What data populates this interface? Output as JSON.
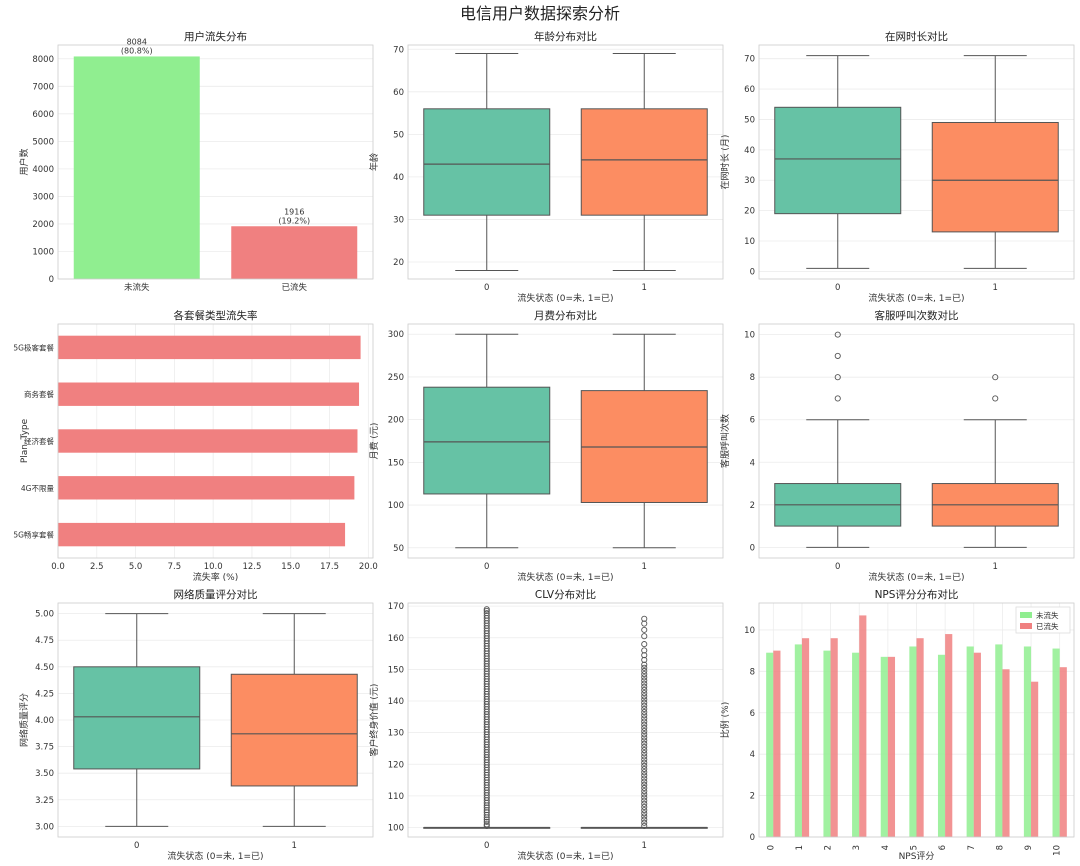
{
  "page_title": "电信用户数据探索分析",
  "colors": {
    "box_retained": "#66c2a5",
    "box_churned": "#fc8d62",
    "bar_green": "#90ee90",
    "bar_red": "#f08080",
    "grid": "#ececec",
    "frame": "#cccccc",
    "median": "#555555"
  },
  "chart_data": [
    {
      "id": "churn_dist",
      "type": "bar",
      "title": "用户流失分布",
      "xlabel": "",
      "ylabel": "用户数",
      "categories": [
        "未流失",
        "已流失"
      ],
      "values": [
        8084,
        1916
      ],
      "data_labels": [
        "8084\n(80.8%)",
        "1916\n(19.2%)"
      ],
      "colors": [
        "#90ee90",
        "#f08080"
      ],
      "ylim": [
        0,
        8500
      ],
      "yticks": [
        0,
        1000,
        2000,
        3000,
        4000,
        5000,
        6000,
        7000,
        8000
      ],
      "ytick_labels": [
        "0",
        "1000",
        "2000",
        "3000",
        "4000",
        "5000",
        "6000",
        "7000",
        "8000"
      ],
      "grid": true
    },
    {
      "id": "age_box",
      "type": "box",
      "title": "年龄分布对比",
      "xlabel": "流失状态 (0=未, 1=已)",
      "ylabel": "年龄",
      "categories": [
        "0",
        "1"
      ],
      "boxes": [
        {
          "whislo": 18,
          "q1": 31,
          "med": 43,
          "q3": 56,
          "whishi": 69,
          "fliers": []
        },
        {
          "whislo": 18,
          "q1": 31,
          "med": 44,
          "q3": 56,
          "whishi": 69,
          "fliers": []
        }
      ],
      "ylim": [
        16,
        71
      ],
      "yticks": [
        20,
        30,
        40,
        50,
        60,
        70
      ],
      "ytick_labels": [
        "20",
        "30",
        "40",
        "50",
        "60",
        "70"
      ],
      "grid": true
    },
    {
      "id": "tenure_box",
      "type": "box",
      "title": "在网时长对比",
      "xlabel": "流失状态 (0=未, 1=已)",
      "ylabel": "在网时长 (月)",
      "categories": [
        "0",
        "1"
      ],
      "boxes": [
        {
          "whislo": 1,
          "q1": 19,
          "med": 37,
          "q3": 54,
          "whishi": 71,
          "fliers": []
        },
        {
          "whislo": 1,
          "q1": 13,
          "med": 30,
          "q3": 49,
          "whishi": 71,
          "fliers": []
        }
      ],
      "ylim": [
        -2.5,
        74.5
      ],
      "yticks": [
        0,
        10,
        20,
        30,
        40,
        50,
        60,
        70
      ],
      "ytick_labels": [
        "0",
        "10",
        "20",
        "30",
        "40",
        "50",
        "60",
        "70"
      ],
      "grid": true
    },
    {
      "id": "plan_churn",
      "type": "hbar",
      "title": "各套餐类型流失率",
      "xlabel": "流失率 (%)",
      "ylabel": "Plan_Type",
      "categories": [
        "5G极客套餐",
        "商务套餐",
        "经济套餐",
        "4G不限量",
        "5G畅享套餐"
      ],
      "values": [
        19.5,
        19.4,
        19.3,
        19.1,
        18.5
      ],
      "color": "#f08080",
      "xlim": [
        0,
        20.3
      ],
      "xticks": [
        0,
        2.5,
        5,
        7.5,
        10,
        12.5,
        15,
        17.5,
        20
      ],
      "xtick_labels": [
        "0.0",
        "2.5",
        "5.0",
        "7.5",
        "10.0",
        "12.5",
        "15.0",
        "17.5",
        "20.0"
      ],
      "grid": true
    },
    {
      "id": "monthly_fee_box",
      "type": "box",
      "title": "月费分布对比",
      "xlabel": "流失状态 (0=未, 1=已)",
      "ylabel": "月费 (元)",
      "categories": [
        "0",
        "1"
      ],
      "boxes": [
        {
          "whislo": 50,
          "q1": 113,
          "med": 174,
          "q3": 238,
          "whishi": 300,
          "fliers": []
        },
        {
          "whislo": 50,
          "q1": 103,
          "med": 168,
          "q3": 234,
          "whishi": 300,
          "fliers": []
        }
      ],
      "ylim": [
        38,
        312
      ],
      "yticks": [
        50,
        100,
        150,
        200,
        250,
        300
      ],
      "ytick_labels": [
        "50",
        "100",
        "150",
        "200",
        "250",
        "300"
      ],
      "grid": true
    },
    {
      "id": "calls_box",
      "type": "box",
      "title": "客服呼叫次数对比",
      "xlabel": "流失状态 (0=未, 1=已)",
      "ylabel": "客服呼叫次数",
      "categories": [
        "0",
        "1"
      ],
      "boxes": [
        {
          "whislo": 0,
          "q1": 1,
          "med": 2,
          "q3": 3,
          "whishi": 6,
          "fliers": [
            7,
            8,
            9,
            10
          ]
        },
        {
          "whislo": 0,
          "q1": 1,
          "med": 2,
          "q3": 3,
          "whishi": 6,
          "fliers": [
            7,
            8
          ]
        }
      ],
      "ylim": [
        -0.5,
        10.5
      ],
      "yticks": [
        0,
        2,
        4,
        6,
        8,
        10
      ],
      "ytick_labels": [
        "0",
        "2",
        "4",
        "6",
        "8",
        "10"
      ],
      "grid": true
    },
    {
      "id": "network_box",
      "type": "box",
      "title": "网络质量评分对比",
      "xlabel": "流失状态 (0=未, 1=已)",
      "ylabel": "网络质量评分",
      "categories": [
        "0",
        "1"
      ],
      "boxes": [
        {
          "whislo": 3.0,
          "q1": 3.54,
          "med": 4.03,
          "q3": 4.5,
          "whishi": 5.0,
          "fliers": []
        },
        {
          "whislo": 3.0,
          "q1": 3.38,
          "med": 3.87,
          "q3": 4.43,
          "whishi": 5.0,
          "fliers": []
        }
      ],
      "ylim": [
        2.9,
        5.1
      ],
      "yticks": [
        3.0,
        3.25,
        3.5,
        3.75,
        4.0,
        4.25,
        4.5,
        4.75,
        5.0
      ],
      "ytick_labels": [
        "3.00",
        "3.25",
        "3.50",
        "3.75",
        "4.00",
        "4.25",
        "4.50",
        "4.75",
        "5.00"
      ],
      "grid": true
    },
    {
      "id": "clv_box",
      "type": "box",
      "title": "CLV分布对比",
      "xlabel": "流失状态 (0=未, 1=已)",
      "ylabel": "客户终身价值 (元)",
      "categories": [
        "0",
        "1"
      ],
      "boxes": [
        {
          "whislo": 100,
          "q1": 100,
          "med": 100,
          "q3": 100,
          "whishi": 100,
          "fliers": [
            100.5,
            101,
            101.8,
            102.5,
            103.2,
            104,
            104.8,
            105.5,
            106.3,
            107,
            107.8,
            108.6,
            109.4,
            110.2,
            111,
            111.8,
            112.6,
            113.4,
            114.2,
            115,
            115.8,
            116.6,
            117.4,
            118.2,
            119,
            119.8,
            120.6,
            121.4,
            122.2,
            123,
            123.8,
            124.6,
            125.4,
            126.2,
            127,
            127.8,
            128.6,
            129.4,
            130.2,
            131,
            131.8,
            132.6,
            133.4,
            134.2,
            135,
            135.8,
            136.6,
            137.4,
            138.2,
            139,
            139.8,
            140.6,
            141.4,
            142.2,
            143,
            143.8,
            144.6,
            145.4,
            146.2,
            147,
            147.8,
            148.6,
            149.4,
            150.2,
            151,
            151.8,
            152.6,
            153.4,
            154.2,
            155,
            155.8,
            156.6,
            157.4,
            158.2,
            159,
            159.8,
            160.6,
            161.4,
            162.2,
            163,
            163.8,
            164.6,
            165.4,
            166.2,
            167,
            167.8,
            168.5,
            169
          ]
        },
        {
          "whislo": 100,
          "q1": 100,
          "med": 100,
          "q3": 100,
          "whishi": 100,
          "fliers": [
            100.5,
            101.5,
            102.5,
            103.5,
            104.5,
            105.5,
            106.5,
            107.5,
            108.5,
            109.5,
            110.5,
            111.5,
            112.5,
            113.5,
            114.5,
            115.5,
            116.5,
            117.5,
            118.5,
            119.5,
            120.5,
            121.5,
            122.5,
            123.5,
            124.5,
            125.5,
            126.5,
            127.5,
            128.5,
            129.5,
            130.5,
            131.5,
            132.5,
            133.5,
            134.5,
            135.5,
            136.5,
            137.5,
            138.5,
            139.5,
            140.5,
            141.5,
            142.5,
            143.5,
            144.5,
            145.5,
            146.5,
            147.5,
            148.5,
            149.5,
            150.5,
            151.5,
            153,
            154.5,
            156,
            158,
            160.5,
            162.5,
            164.5,
            166
          ]
        }
      ],
      "ylim": [
        97,
        171
      ],
      "yticks": [
        100,
        110,
        120,
        130,
        140,
        150,
        160,
        170
      ],
      "ytick_labels": [
        "100",
        "110",
        "120",
        "130",
        "140",
        "150",
        "160",
        "170"
      ],
      "grid": true
    },
    {
      "id": "nps_dist",
      "type": "grouped_bar",
      "title": "NPS评分分布对比",
      "xlabel": "NPS评分",
      "ylabel": "比例 (%)",
      "categories": [
        "0",
        "1",
        "2",
        "3",
        "4",
        "5",
        "6",
        "7",
        "8",
        "9",
        "10"
      ],
      "series": [
        {
          "name": "未流失",
          "color": "#90ee90",
          "values": [
            8.9,
            9.3,
            9.0,
            8.9,
            8.7,
            9.2,
            8.8,
            9.2,
            9.3,
            9.2,
            9.1
          ]
        },
        {
          "name": "已流失",
          "color": "#f08080",
          "values": [
            9.0,
            9.6,
            9.6,
            10.7,
            8.7,
            9.6,
            9.8,
            8.9,
            8.1,
            7.5,
            8.2
          ]
        }
      ],
      "legend_position": "top-right",
      "ylim": [
        0,
        11.3
      ],
      "yticks": [
        0,
        2,
        4,
        6,
        8,
        10
      ],
      "ytick_labels": [
        "0",
        "2",
        "4",
        "6",
        "8",
        "10"
      ],
      "grid": true
    }
  ]
}
